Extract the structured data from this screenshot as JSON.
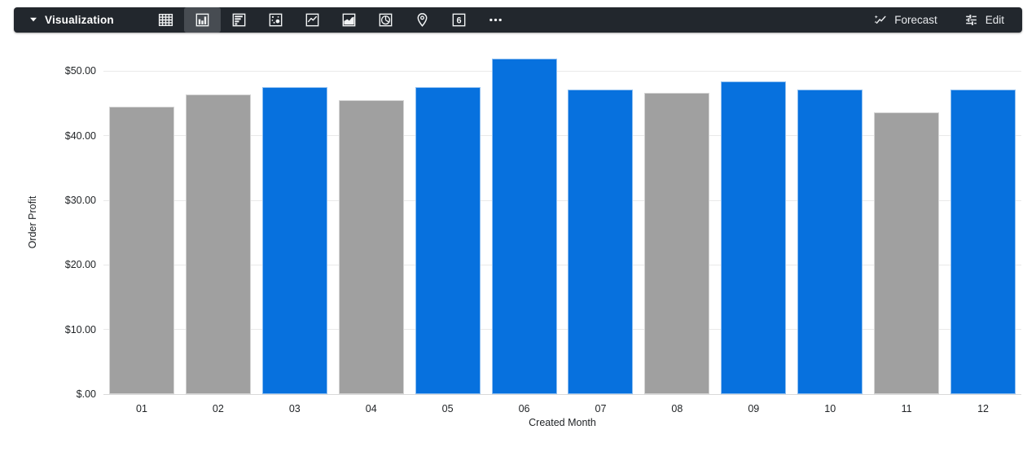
{
  "toolbar": {
    "title": "Visualization",
    "chart_type_buttons": [
      {
        "name": "table",
        "selected": false
      },
      {
        "name": "column",
        "selected": true
      },
      {
        "name": "bar",
        "selected": false
      },
      {
        "name": "scatter",
        "selected": false
      },
      {
        "name": "line",
        "selected": false
      },
      {
        "name": "area",
        "selected": false
      },
      {
        "name": "pie",
        "selected": false
      },
      {
        "name": "map",
        "selected": false
      },
      {
        "name": "single-value",
        "selected": false,
        "glyph": "6"
      },
      {
        "name": "more",
        "selected": false
      }
    ],
    "forecast_label": "Forecast",
    "edit_label": "Edit",
    "background_color": "#22272D",
    "selected_button_color": "#474C52"
  },
  "chart_data": {
    "type": "bar",
    "title": "",
    "xlabel": "Created Month",
    "ylabel": "Order Profit",
    "categories": [
      "01",
      "02",
      "03",
      "04",
      "05",
      "06",
      "07",
      "08",
      "09",
      "10",
      "11",
      "12"
    ],
    "values": [
      44.5,
      46.4,
      47.5,
      45.5,
      47.5,
      51.9,
      47.1,
      46.6,
      48.4,
      47.2,
      43.6,
      47.2
    ],
    "bar_colors": [
      "gray",
      "gray",
      "blue",
      "gray",
      "blue",
      "blue",
      "blue",
      "gray",
      "blue",
      "blue",
      "gray",
      "blue"
    ],
    "palette": {
      "blue": "#0771DE",
      "gray": "#A0A0A0"
    },
    "y_ticks": [
      {
        "value": 0,
        "label": "$.00"
      },
      {
        "value": 10,
        "label": "$10.00"
      },
      {
        "value": 20,
        "label": "$20.00"
      },
      {
        "value": 30,
        "label": "$30.00"
      },
      {
        "value": 40,
        "label": "$40.00"
      },
      {
        "value": 50,
        "label": "$50.00"
      }
    ],
    "ylim": [
      0,
      53.2
    ],
    "grid": true,
    "legend": "none"
  }
}
